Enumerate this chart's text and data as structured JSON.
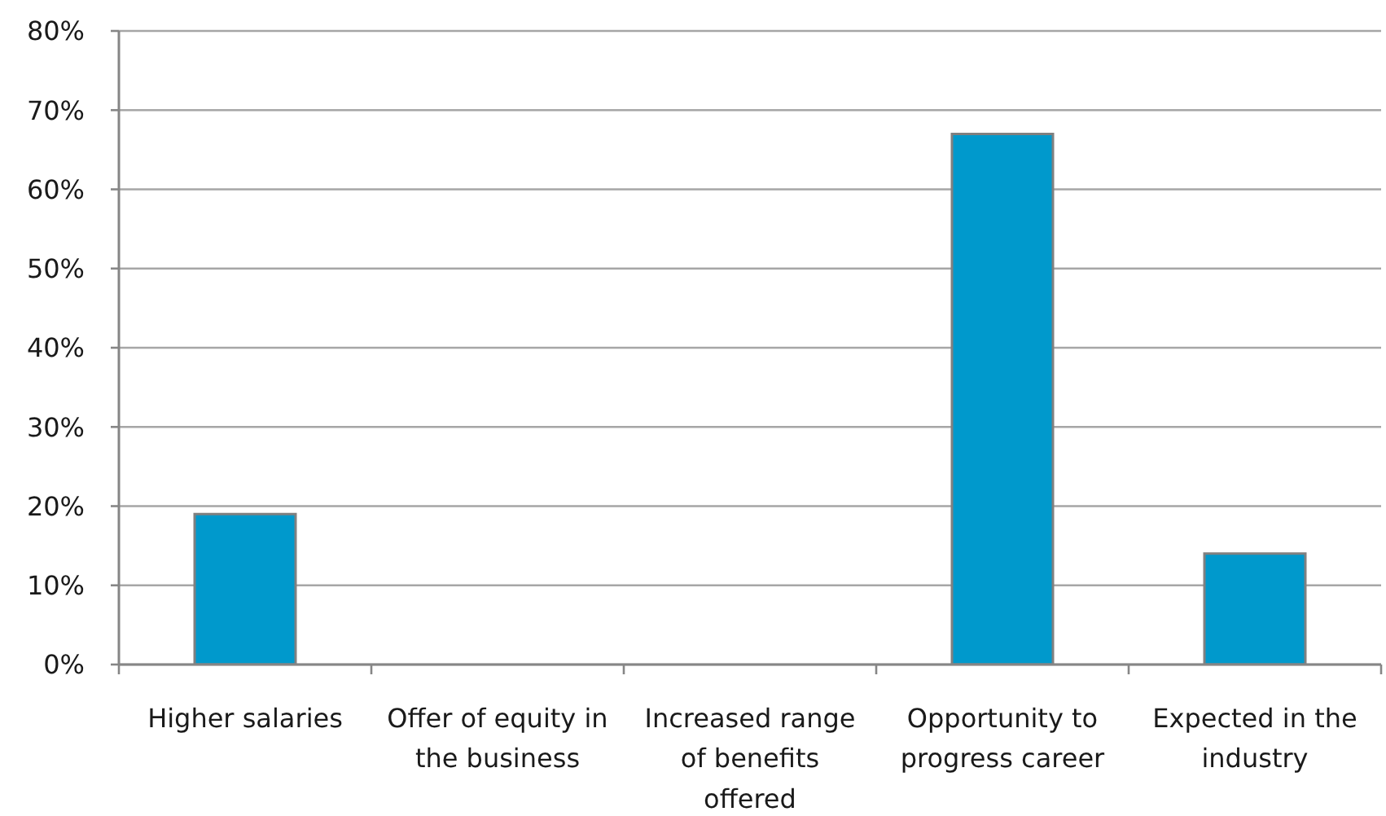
{
  "chart_data": {
    "type": "bar",
    "categories": [
      "Higher salaries",
      "Offer of equity in the business",
      "Increased range of benefits offered",
      "Opportunity to progress career",
      "Expected in the industry"
    ],
    "values": [
      19,
      0,
      0,
      67,
      14
    ],
    "color": "#0099cc",
    "ylim": [
      0,
      80
    ],
    "yticks": [
      {
        "value": 0,
        "label": "0%"
      },
      {
        "value": 10,
        "label": "10%"
      },
      {
        "value": 20,
        "label": "20%"
      },
      {
        "value": 30,
        "label": "30%"
      },
      {
        "value": 40,
        "label": "40%"
      },
      {
        "value": 50,
        "label": "50%"
      },
      {
        "value": 60,
        "label": "60%"
      },
      {
        "value": 70,
        "label": "70%"
      },
      {
        "value": 80,
        "label": "80%"
      }
    ],
    "grid": "y"
  }
}
